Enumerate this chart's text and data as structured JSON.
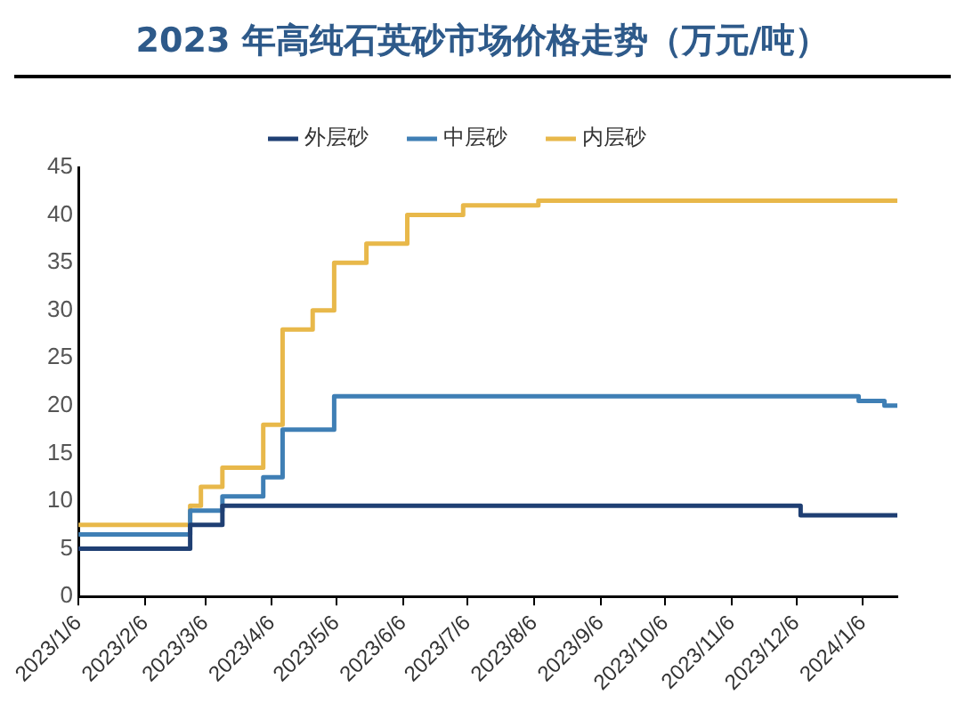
{
  "chart_data": {
    "type": "step",
    "title": "2023 年高纯石英砂市场价格走势（万元/吨）",
    "series": [
      {
        "name": "外层砂",
        "color": "#1f3f73",
        "x": [
          "2023-01-06",
          "2023-02-27",
          "2023-03-14",
          "2023-12-08",
          "2024-01-22"
        ],
        "values": [
          5,
          7.5,
          9.5,
          8.5,
          8.5
        ]
      },
      {
        "name": "中层砂",
        "color": "#3f7fb5",
        "x": [
          "2023-01-06",
          "2023-02-27",
          "2023-03-14",
          "2023-04-02",
          "2023-04-11",
          "2023-05-05",
          "2024-01-04",
          "2024-01-16",
          "2024-01-22"
        ],
        "values": [
          6.5,
          9,
          10.5,
          12.5,
          17.5,
          21,
          20.5,
          20,
          20
        ]
      },
      {
        "name": "内层砂",
        "color": "#e8b84a",
        "x": [
          "2023-01-06",
          "2023-02-27",
          "2023-03-04",
          "2023-03-14",
          "2023-04-02",
          "2023-04-11",
          "2023-04-25",
          "2023-05-05",
          "2023-05-20",
          "2023-06-08",
          "2023-07-04",
          "2023-08-08",
          "2024-01-22"
        ],
        "values": [
          7.5,
          9.5,
          11.5,
          13.5,
          18,
          28,
          30,
          35,
          37,
          40,
          41,
          41.5,
          41.5
        ]
      }
    ],
    "xlim": [
      "2023-01-06",
      "2024-01-22"
    ],
    "xticks": [
      {
        "value": "2023-01-06",
        "label": "2023/1/6"
      },
      {
        "value": "2023-02-06",
        "label": "2023/2/6"
      },
      {
        "value": "2023-03-06",
        "label": "2023/3/6"
      },
      {
        "value": "2023-04-06",
        "label": "2023/4/6"
      },
      {
        "value": "2023-05-06",
        "label": "2023/5/6"
      },
      {
        "value": "2023-06-06",
        "label": "2023/6/6"
      },
      {
        "value": "2023-07-06",
        "label": "2023/7/6"
      },
      {
        "value": "2023-08-06",
        "label": "2023/8/6"
      },
      {
        "value": "2023-09-06",
        "label": "2023/9/6"
      },
      {
        "value": "2023-10-06",
        "label": "2023/10/6"
      },
      {
        "value": "2023-11-06",
        "label": "2023/11/6"
      },
      {
        "value": "2023-12-06",
        "label": "2023/12/6"
      },
      {
        "value": "2024-01-06",
        "label": "2024/1/6"
      }
    ],
    "ylim": [
      0,
      45
    ],
    "yticks": [
      0,
      5,
      10,
      15,
      20,
      25,
      30,
      35,
      40,
      45
    ],
    "grid": false,
    "legend": "top",
    "marker": "none",
    "line_style": "solid"
  }
}
